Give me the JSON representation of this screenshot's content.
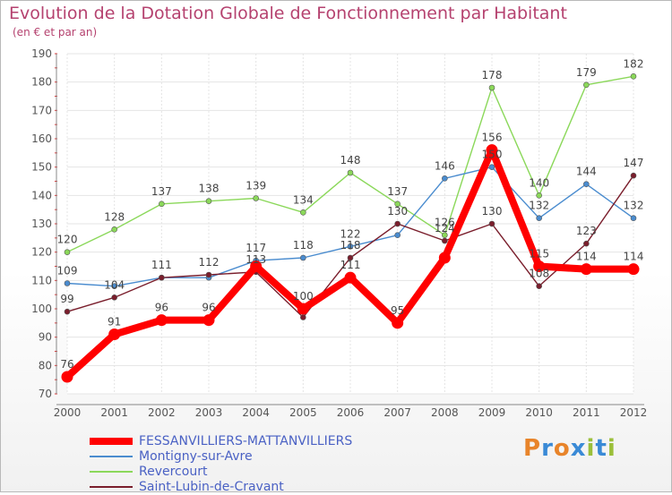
{
  "title": "Evolution de la Dotation Globale de Fonctionnement par Habitant",
  "subtitle": "(en € et par an)",
  "logo": {
    "text": "Proxiti",
    "letters": [
      "P",
      "r",
      "o",
      "x",
      "i",
      "t",
      "i"
    ],
    "colors": [
      "#e8842a",
      "#3a8ad6",
      "#e8842a",
      "#3a8ad6",
      "#9bbf3a",
      "#3a8ad6",
      "#9bbf3a"
    ]
  },
  "chart_data": {
    "type": "line",
    "title": "Evolution de la Dotation Globale de Fonctionnement par Habitant",
    "ylabel": "(en € et par an)",
    "xlabel": "",
    "categories": [
      "2000",
      "2001",
      "2002",
      "2003",
      "2004",
      "2005",
      "2006",
      "2007",
      "2008",
      "2009",
      "2010",
      "2011",
      "2012"
    ],
    "ylim": [
      70,
      190
    ],
    "yticks": [
      70,
      80,
      90,
      100,
      110,
      120,
      130,
      140,
      150,
      160,
      170,
      180,
      190
    ],
    "grid": true,
    "legend_position": "bottom-left",
    "series": [
      {
        "name": "FESSANVILLIERS-MATTANVILLIERS",
        "color": "#ff0000",
        "values": [
          76,
          91,
          96,
          96,
          115,
          100,
          111,
          95,
          118,
          156,
          115,
          114,
          114
        ],
        "labels": [
          "76",
          "91",
          "96",
          "96",
          "",
          "100",
          "111",
          "95",
          "",
          "156",
          "115",
          "114",
          "114"
        ],
        "bold": true
      },
      {
        "name": "Montigny-sur-Avre",
        "color": "#4a8ccf",
        "values": [
          109,
          108,
          111,
          111,
          117,
          118,
          122,
          126,
          146,
          150,
          132,
          144,
          132
        ],
        "labels": [
          "109",
          "",
          "",
          "",
          "117",
          "118",
          "122",
          "",
          "146",
          "150",
          "132",
          "144",
          "132"
        ]
      },
      {
        "name": "Revercourt",
        "color": "#8bd85a",
        "values": [
          120,
          128,
          137,
          138,
          139,
          134,
          148,
          137,
          126,
          178,
          140,
          179,
          182
        ],
        "labels": [
          "120",
          "128",
          "137",
          "138",
          "139",
          "134",
          "148",
          "137",
          "126",
          "178",
          "140",
          "179",
          "182"
        ]
      },
      {
        "name": "Saint-Lubin-de-Cravant",
        "color": "#7a1e2c",
        "values": [
          99,
          104,
          111,
          112,
          113,
          97,
          118,
          130,
          124,
          130,
          108,
          123,
          147
        ],
        "labels": [
          "99",
          "104",
          "111",
          "112",
          "113",
          "",
          "118",
          "130",
          "124",
          "130",
          "108",
          "123",
          "147"
        ]
      }
    ]
  }
}
